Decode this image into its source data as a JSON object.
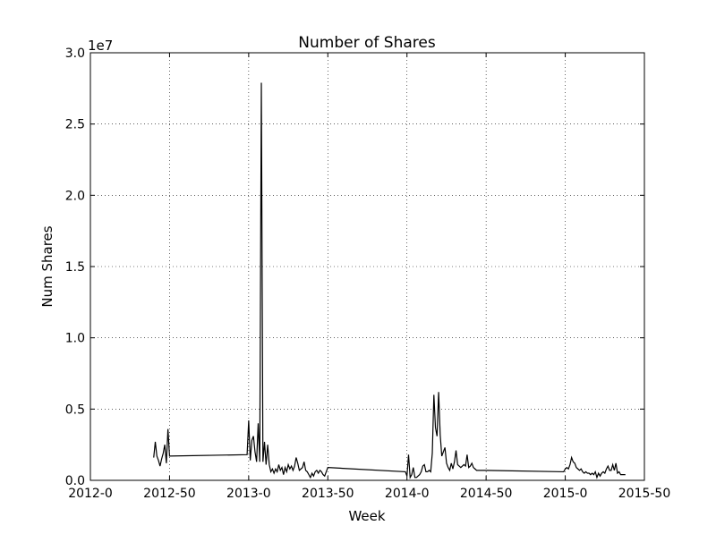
{
  "chart_data": {
    "type": "line",
    "title": "Number of Shares",
    "xlabel": "Week",
    "ylabel": "Num Shares",
    "y_offset_label": "1e7",
    "color": "#000000",
    "grid": true,
    "xlim": [
      0,
      350
    ],
    "xticks": [
      {
        "value": 0,
        "label": "2012-0"
      },
      {
        "value": 50,
        "label": "2012-50"
      },
      {
        "value": 100,
        "label": "2013-0"
      },
      {
        "value": 150,
        "label": "2013-50"
      },
      {
        "value": 200,
        "label": "2014-0"
      },
      {
        "value": 250,
        "label": "2014-50"
      },
      {
        "value": 300,
        "label": "2015-0"
      },
      {
        "value": 350,
        "label": "2015-50"
      }
    ],
    "ylim": [
      0,
      3
    ],
    "yticks": [
      {
        "value": 0,
        "label": "0.0"
      },
      0.5,
      {
        "value": 1,
        "label": "1.0"
      },
      1.5,
      {
        "value": 2,
        "label": "2.0"
      },
      2.5,
      {
        "value": 3,
        "label": "3.0"
      }
    ],
    "x": [
      40,
      41,
      42,
      43,
      44,
      45,
      46,
      47,
      48,
      49,
      50,
      99,
      100,
      101,
      102,
      103,
      104,
      105,
      106,
      107,
      108,
      109,
      110,
      111,
      112,
      113,
      114,
      115,
      116,
      117,
      118,
      119,
      120,
      121,
      122,
      123,
      124,
      125,
      126,
      127,
      128,
      129,
      130,
      131,
      132,
      133,
      134,
      135,
      136,
      137,
      138,
      139,
      140,
      141,
      142,
      143,
      144,
      145,
      146,
      147,
      148,
      149,
      150,
      199,
      200,
      201,
      202,
      203,
      204,
      205,
      206,
      207,
      208,
      209,
      210,
      211,
      212,
      213,
      214,
      215,
      216,
      217,
      218,
      219,
      220,
      221,
      222,
      223,
      224,
      225,
      226,
      227,
      228,
      229,
      230,
      231,
      232,
      233,
      234,
      235,
      236,
      237,
      238,
      239,
      240,
      241,
      242,
      243,
      244,
      245,
      250,
      299,
      300,
      301,
      302,
      303,
      304,
      305,
      306,
      307,
      308,
      309,
      310,
      311,
      312,
      313,
      314,
      315,
      316,
      317,
      318,
      319,
      320,
      321,
      322,
      323,
      324,
      325,
      326,
      327,
      328,
      329,
      330,
      331,
      332,
      333,
      334,
      335,
      336,
      337,
      338
    ],
    "values": [
      0.16,
      0.27,
      0.17,
      0.14,
      0.1,
      0.15,
      0.19,
      0.25,
      0.12,
      0.36,
      0.17,
      0.18,
      0.42,
      0.14,
      0.28,
      0.31,
      0.2,
      0.13,
      0.4,
      0.13,
      2.79,
      0.13,
      0.27,
      0.11,
      0.25,
      0.11,
      0.06,
      0.08,
      0.05,
      0.08,
      0.06,
      0.11,
      0.07,
      0.09,
      0.04,
      0.09,
      0.06,
      0.11,
      0.08,
      0.1,
      0.07,
      0.1,
      0.16,
      0.12,
      0.07,
      0.08,
      0.09,
      0.13,
      0.07,
      0.06,
      0.04,
      0.02,
      0.05,
      0.03,
      0.06,
      0.07,
      0.05,
      0.07,
      0.06,
      0.04,
      0.03,
      0.06,
      0.09,
      0.06,
      0.03,
      0.18,
      0.02,
      0.04,
      0.09,
      0.02,
      0.02,
      0.03,
      0.04,
      0.06,
      0.1,
      0.11,
      0.06,
      0.06,
      0.07,
      0.06,
      0.19,
      0.6,
      0.37,
      0.31,
      0.62,
      0.32,
      0.17,
      0.2,
      0.23,
      0.12,
      0.09,
      0.07,
      0.12,
      0.08,
      0.13,
      0.21,
      0.11,
      0.1,
      0.09,
      0.1,
      0.11,
      0.1,
      0.18,
      0.09,
      0.1,
      0.12,
      0.09,
      0.08,
      0.07,
      0.07,
      0.07,
      0.06,
      0.08,
      0.09,
      0.08,
      0.11,
      0.16,
      0.13,
      0.12,
      0.09,
      0.08,
      0.07,
      0.08,
      0.06,
      0.05,
      0.06,
      0.05,
      0.05,
      0.04,
      0.05,
      0.04,
      0.06,
      0.02,
      0.05,
      0.03,
      0.05,
      0.06,
      0.05,
      0.08,
      0.1,
      0.07,
      0.07,
      0.11,
      0.07,
      0.12,
      0.05,
      0.06,
      0.04,
      0.04,
      0.04,
      0.04
    ]
  }
}
